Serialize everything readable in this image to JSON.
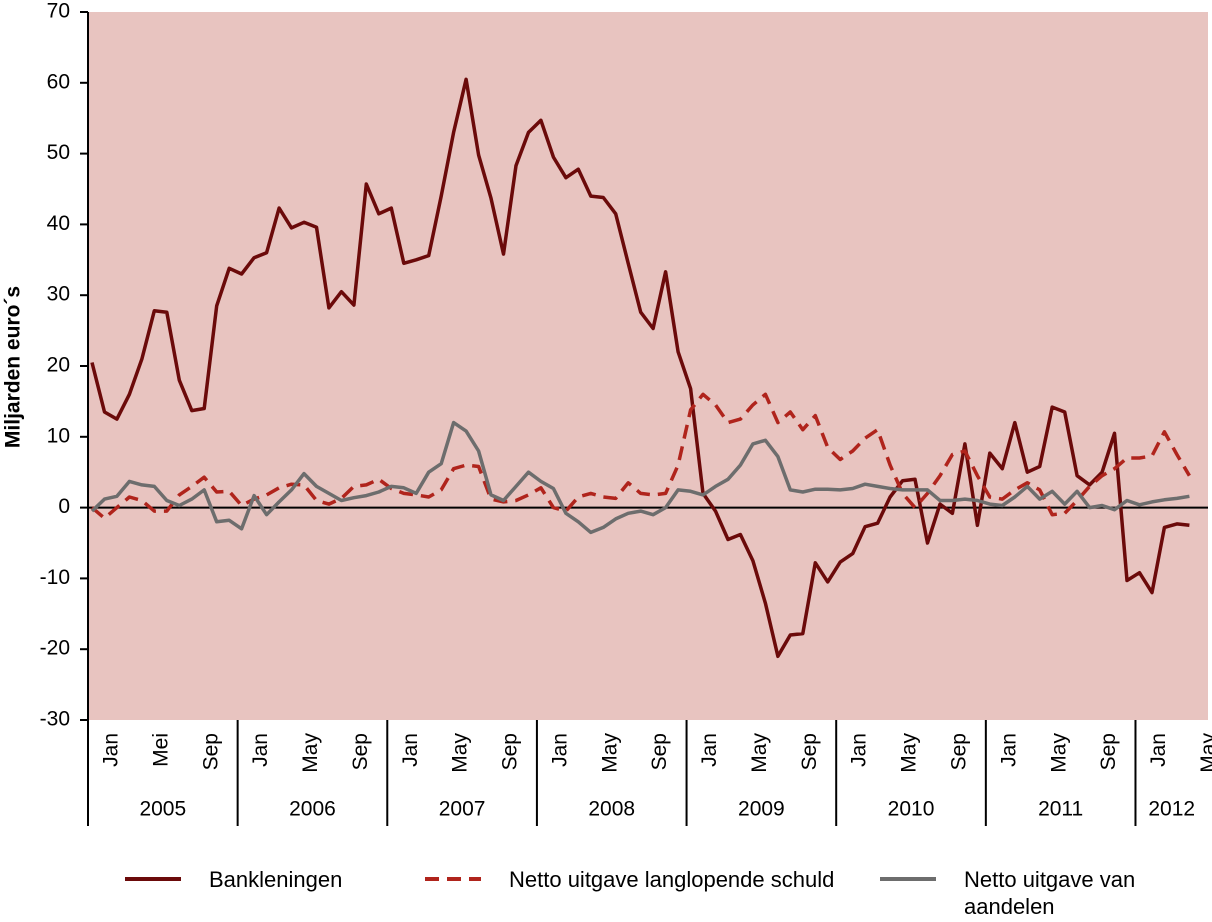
{
  "chart_data": {
    "type": "line",
    "y_label": "Miljarden euro´s",
    "categories": [
      "Jan",
      null,
      null,
      null,
      "Mei",
      null,
      null,
      null,
      "Sep",
      null,
      null,
      null,
      "Jan",
      null,
      null,
      null,
      "May",
      null,
      null,
      null,
      "Sep",
      null,
      null,
      null,
      "Jan",
      null,
      null,
      null,
      "May",
      null,
      null,
      null,
      "Sep",
      null,
      null,
      null,
      "Jan",
      null,
      null,
      null,
      "May",
      null,
      null,
      null,
      "Sep",
      null,
      null,
      null,
      "Jan",
      null,
      null,
      null,
      "May",
      null,
      null,
      null,
      "Sep",
      null,
      null,
      null,
      "Jan",
      null,
      null,
      null,
      "May",
      null,
      null,
      null,
      "Sep",
      null,
      null,
      null,
      "Jan",
      null,
      null,
      null,
      "May",
      null,
      null,
      null,
      "Sep",
      null,
      null,
      null,
      "Jan",
      null,
      null,
      null,
      "May"
    ],
    "years": [
      "2005",
      "2006",
      "2007",
      "2008",
      "2009",
      "2010",
      "2011",
      "2012"
    ],
    "series": [
      {
        "name": "Bankleningen",
        "color": "#6b0a0a",
        "dash": false,
        "values": [
          20.5,
          13.5,
          12.5,
          16,
          21,
          27.8,
          27.6,
          18,
          13.7,
          14,
          28.5,
          33.8,
          33,
          35.3,
          36,
          42.3,
          39.5,
          40.3,
          39.6,
          28.2,
          30.5,
          28.6,
          45.7,
          41.5,
          42.3,
          34.5,
          35,
          35.6,
          44,
          53,
          60.5,
          49.8,
          43.7,
          35.8,
          48.3,
          53,
          54.7,
          49.5,
          46.6,
          47.8,
          44,
          43.8,
          41.5,
          34.5,
          27.6,
          25.3,
          33.3,
          22,
          16.8,
          2,
          -0.5,
          -4.5,
          -3.8,
          -7.5,
          -13.5,
          -21,
          -18,
          -17.8,
          -7.8,
          -10.5,
          -7.7,
          -6.5,
          -2.7,
          -2.2,
          1.5,
          3.8,
          4,
          -5,
          0.5,
          -0.8,
          9,
          -2.5,
          7.7,
          5.5,
          12,
          5,
          5.8,
          14.2,
          13.5,
          4.5,
          3.2,
          5,
          10.5,
          -10.3,
          -9.2,
          -12,
          -2.8,
          -2.3,
          -2.5
        ]
      },
      {
        "name": "Netto uitgave langlopende schuld",
        "color": "#b0241c",
        "dash": true,
        "values": [
          0,
          -1.5,
          0,
          1.5,
          1,
          -0.5,
          -0.5,
          1.8,
          3,
          4.3,
          2.2,
          2.3,
          0.3,
          1.2,
          1.8,
          2.8,
          3.3,
          3.2,
          1,
          0.5,
          1.3,
          3,
          3.2,
          4,
          2.7,
          2,
          1.8,
          1.5,
          2.5,
          5.5,
          6,
          5.8,
          1.2,
          0.8,
          1,
          1.8,
          2.8,
          0,
          -0.5,
          1.5,
          2,
          1.5,
          1.3,
          3.5,
          2,
          1.8,
          2,
          6,
          13.8,
          16,
          14.5,
          12,
          12.5,
          14.5,
          16,
          12,
          13.5,
          11,
          13,
          8.5,
          6.8,
          8,
          9.8,
          11,
          6,
          2,
          0,
          2,
          4.5,
          7.5,
          8,
          4.5,
          1.5,
          1.2,
          2.5,
          3.5,
          2.5,
          -1,
          -0.8,
          1,
          3,
          4.5,
          5.5,
          7,
          7,
          7.3,
          10.7,
          7.5,
          4.5
        ]
      },
      {
        "name": "Netto uitgave van aandelen",
        "color": "#6d6d6d",
        "dash": false,
        "values": [
          -0.5,
          1.2,
          1.6,
          3.7,
          3.2,
          3,
          1,
          0.3,
          1.2,
          2.5,
          -2,
          -1.8,
          -3,
          1.7,
          -1,
          0.8,
          2.5,
          4.8,
          3,
          2,
          1,
          1.4,
          1.7,
          2.2,
          3,
          2.8,
          2,
          5,
          6.2,
          12,
          10.8,
          8,
          1.8,
          1,
          3,
          5,
          3.7,
          2.7,
          -0.8,
          -2,
          -3.5,
          -2.8,
          -1.6,
          -0.8,
          -0.5,
          -1,
          0,
          2.5,
          2.3,
          1.8,
          3,
          4,
          6,
          9,
          9.5,
          7.2,
          2.5,
          2.2,
          2.6,
          2.6,
          2.5,
          2.7,
          3.3,
          3,
          2.7,
          2.5,
          2.5,
          2.5,
          1,
          1,
          1.2,
          1,
          0.5,
          0.3,
          1.5,
          3,
          1.2,
          2.3,
          0.5,
          2.3,
          0,
          0.3,
          -0.3,
          1,
          0.4,
          0.8,
          1.1,
          1.3,
          1.6
        ]
      }
    ],
    "ylim": [
      -30,
      70
    ],
    "yticks": [
      -30,
      -20,
      -10,
      0,
      10,
      20,
      30,
      40,
      50,
      60,
      70
    ],
    "background": "#e8c4c0",
    "legend": "bottom"
  }
}
